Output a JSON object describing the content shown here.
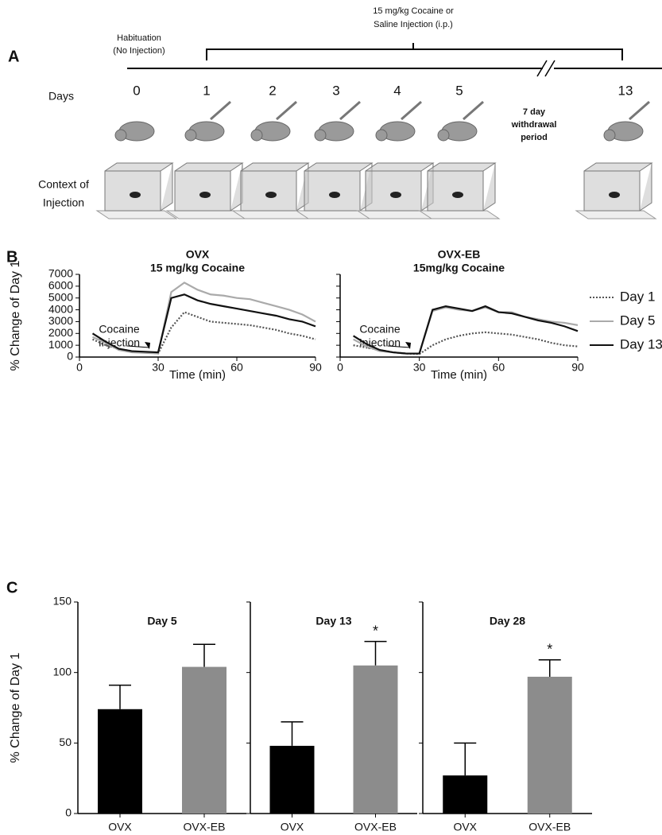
{
  "panel_a": {
    "label": "A",
    "habituation": [
      "Habituation",
      "(No Injection)"
    ],
    "injection": [
      "15 mg/kg Cocaine or",
      "Saline Injection (i.p.)"
    ],
    "days_label": "Days",
    "days": [
      "0",
      "1",
      "2",
      "3",
      "4",
      "5",
      "13"
    ],
    "withdrawal": [
      "7 day",
      "withdrawal",
      "period"
    ],
    "context": [
      "Context of",
      "Injection"
    ]
  },
  "panel_labels": {
    "b": "B",
    "c": "C"
  },
  "chart_data": [
    {
      "type": "line",
      "title": "OVX",
      "subtitle": "15 mg/kg Cocaine",
      "x_label": "Time (min)",
      "y_label": "% Change of Day 1",
      "annotation": [
        "Cocaine",
        "Injection"
      ],
      "x": [
        5,
        10,
        15,
        20,
        25,
        30,
        35,
        40,
        45,
        50,
        55,
        60,
        65,
        70,
        75,
        80,
        85,
        90
      ],
      "series": [
        {
          "color": "#555555",
          "style": "dotted",
          "values": [
            1500,
            1000,
            700,
            500,
            400,
            300,
            2500,
            3800,
            3400,
            3000,
            2900,
            2800,
            2700,
            2500,
            2300,
            2000,
            1800,
            1500
          ]
        },
        {
          "color": "#aaaaaa",
          "style": "solid",
          "values": [
            1700,
            1200,
            600,
            400,
            350,
            300,
            5500,
            6300,
            5700,
            5300,
            5200,
            5000,
            4900,
            4600,
            4300,
            4000,
            3600,
            3000
          ]
        },
        {
          "color": "#111111",
          "style": "solid",
          "values": [
            2000,
            1300,
            700,
            500,
            450,
            400,
            5000,
            5300,
            4800,
            4500,
            4300,
            4100,
            3900,
            3700,
            3500,
            3200,
            3000,
            2600
          ]
        }
      ],
      "xlim": [
        0,
        90
      ],
      "xticks": [
        0,
        30,
        60,
        90
      ],
      "ylim": [
        0,
        7000
      ],
      "yticks": [
        0,
        1000,
        2000,
        3000,
        4000,
        5000,
        6000,
        7000
      ],
      "ytick_labels": true
    },
    {
      "type": "line",
      "title": "OVX-EB",
      "subtitle": "15mg/kg Cocaine",
      "x_label": "Time (min)",
      "annotation": [
        "Cocaine",
        "Injection"
      ],
      "x": [
        5,
        10,
        15,
        20,
        25,
        30,
        35,
        40,
        45,
        50,
        55,
        60,
        65,
        70,
        75,
        80,
        85,
        90
      ],
      "series": [
        {
          "name": "Day 1",
          "color": "#555555",
          "style": "dotted",
          "values": [
            1000,
            800,
            600,
            400,
            300,
            250,
            1000,
            1500,
            1800,
            2000,
            2100,
            2000,
            1900,
            1700,
            1500,
            1200,
            1000,
            900
          ]
        },
        {
          "name": "Day 5",
          "color": "#aaaaaa",
          "style": "solid",
          "values": [
            1500,
            900,
            500,
            400,
            300,
            300,
            3900,
            4200,
            4000,
            3900,
            4200,
            3800,
            3800,
            3400,
            3200,
            3000,
            2900,
            2700
          ]
        },
        {
          "name": "Day 13",
          "color": "#111111",
          "style": "solid",
          "values": [
            1800,
            1100,
            600,
            400,
            300,
            300,
            4000,
            4300,
            4100,
            3900,
            4300,
            3800,
            3700,
            3400,
            3100,
            2900,
            2600,
            2200
          ]
        }
      ],
      "xlim": [
        0,
        90
      ],
      "xticks": [
        0,
        30,
        60,
        90
      ],
      "ylim": [
        0,
        7000
      ],
      "yticks": [
        0,
        1000,
        2000,
        3000,
        4000,
        5000,
        6000,
        7000
      ],
      "ytick_labels": false,
      "legend": "right"
    },
    {
      "type": "bar",
      "title": "Day 5",
      "y_label": "% Change of Day 1",
      "categories": [
        "OVX",
        "OVX-EB"
      ],
      "values": [
        74,
        104
      ],
      "errors": [
        17,
        16
      ],
      "value_notes": [
        null,
        null
      ],
      "colors": [
        "#000000",
        "#8c8c8c"
      ],
      "ylim": [
        0,
        150
      ],
      "yticks": [
        0,
        50,
        100,
        150
      ],
      "ytick_labels": true
    },
    {
      "type": "bar",
      "title": "Day 13",
      "categories": [
        "OVX",
        "OVX-EB"
      ],
      "values": [
        48,
        105
      ],
      "errors": [
        17,
        17
      ],
      "value_notes": [
        null,
        "*"
      ],
      "colors": [
        "#000000",
        "#8c8c8c"
      ],
      "ylim": [
        0,
        150
      ],
      "yticks": [
        0,
        50,
        100,
        150
      ],
      "ytick_labels": false
    },
    {
      "type": "bar",
      "title": "Day 28",
      "categories": [
        "OVX",
        "OVX-EB"
      ],
      "values": [
        27,
        97
      ],
      "errors": [
        23,
        12
      ],
      "value_notes": [
        null,
        "*"
      ],
      "colors": [
        "#000000",
        "#8c8c8c"
      ],
      "ylim": [
        0,
        150
      ],
      "yticks": [
        0,
        50,
        100,
        150
      ],
      "ytick_labels": false
    }
  ]
}
